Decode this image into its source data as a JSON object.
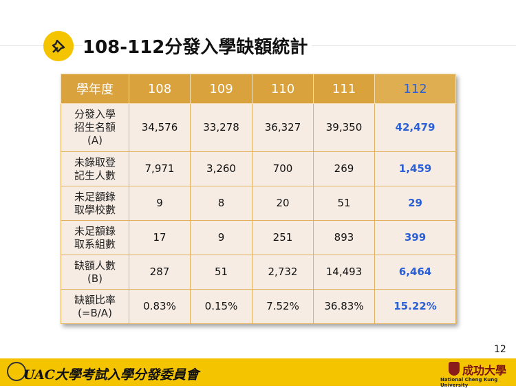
{
  "title": "108-112分發入學缺額統計",
  "table": {
    "header": [
      "學年度",
      "108",
      "109",
      "110",
      "111",
      "112"
    ],
    "rows": [
      [
        "分發入學\n招生名額\n(A)",
        "34,576",
        "33,278",
        "36,327",
        "39,350",
        "42,479"
      ],
      [
        "未錄取登\n記生人數",
        "7,971",
        "3,260",
        "700",
        "269",
        "1,459"
      ],
      [
        "未足額錄\n取學校數",
        "9",
        "8",
        "20",
        "51",
        "29"
      ],
      [
        "未足額錄\n取系組數",
        "17",
        "9",
        "251",
        "893",
        "399"
      ],
      [
        "缺額人數\n(B)",
        "287",
        "51",
        "2,732",
        "14,493",
        "6,464"
      ],
      [
        "缺額比率\n(=B/A)",
        "0.83%",
        "0.15%",
        "7.52%",
        "36.83%",
        "15.22%"
      ]
    ]
  },
  "page_number": "12",
  "footer": {
    "organization": "UAC大學考試入學分發委員會",
    "university_cn": "成功大學",
    "university_en": "National Cheng Kung University"
  }
}
